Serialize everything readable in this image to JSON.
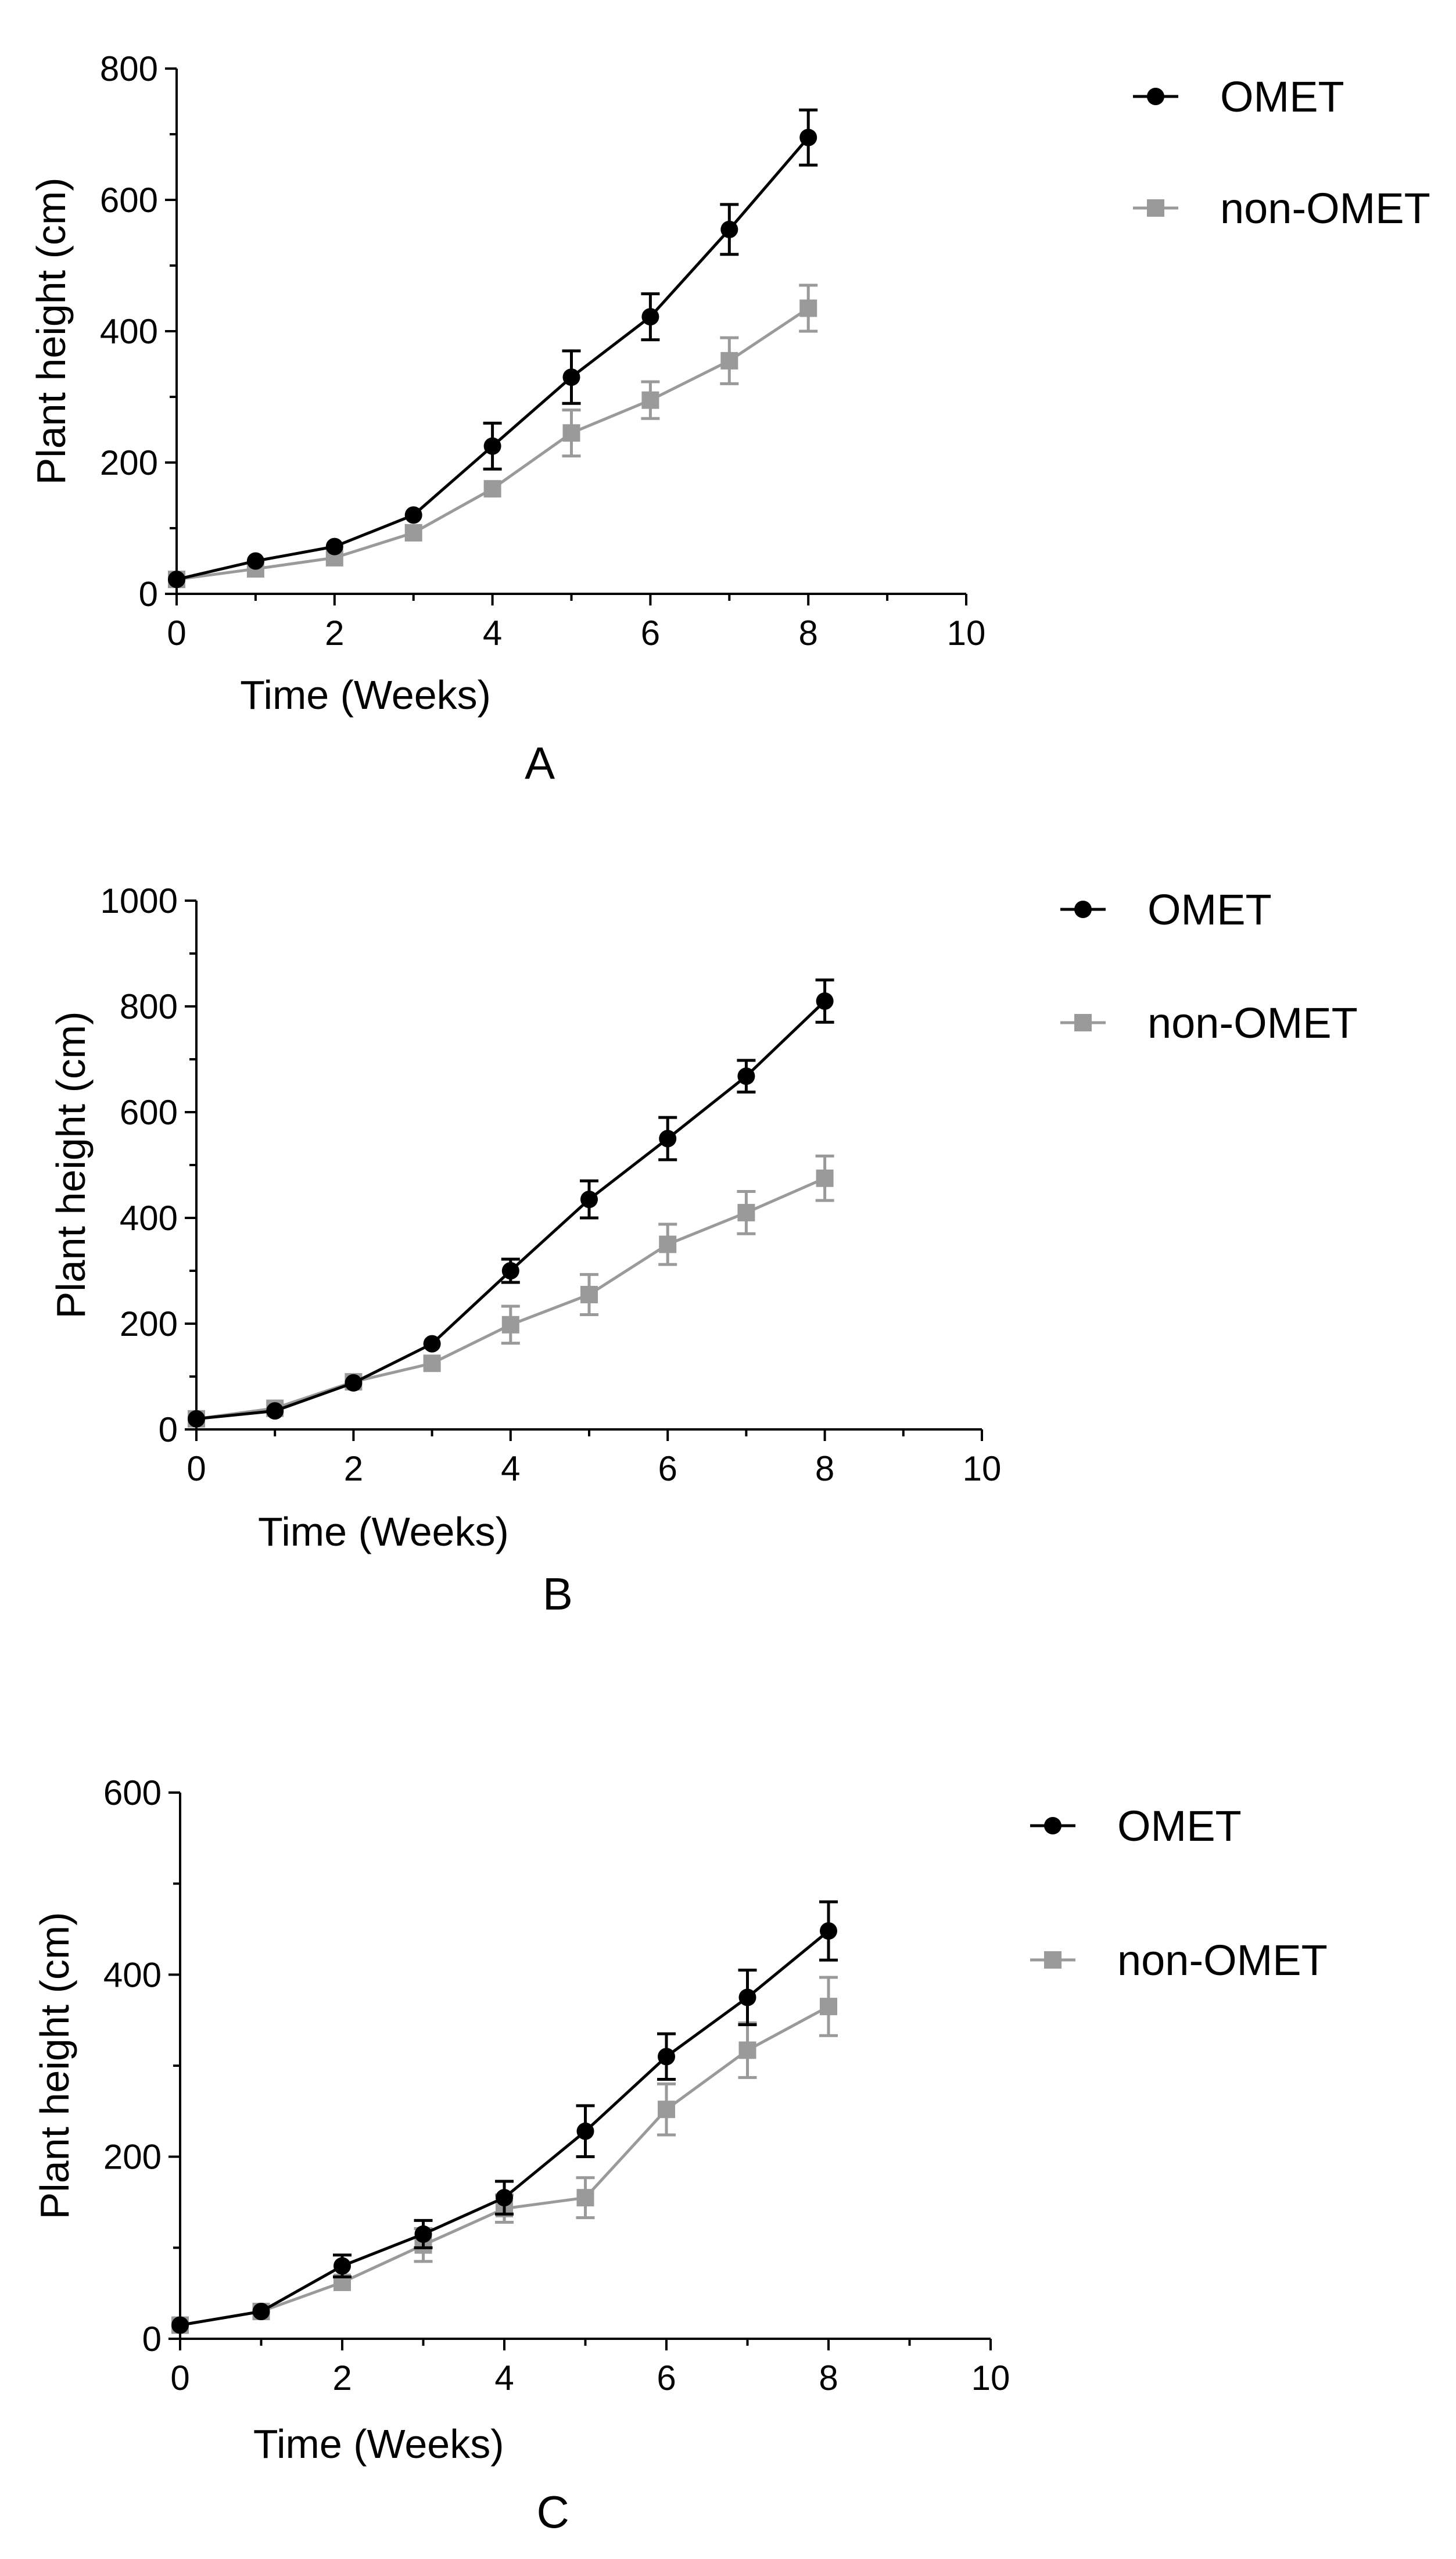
{
  "colors": {
    "omet": "#000000",
    "non_omet": "#9a9a9a"
  },
  "chart_data": [
    {
      "type": "line",
      "panel_label": "A",
      "xlabel": "Time (Weeks)",
      "ylabel": "Plant height (cm)",
      "xlim": [
        0,
        10
      ],
      "ylim": [
        0,
        800
      ],
      "x_ticks": [
        "0",
        "2",
        "4",
        "6",
        "8",
        "10"
      ],
      "y_ticks": [
        "0",
        "200",
        "400",
        "600",
        "800"
      ],
      "legend_position": "top-right",
      "x": [
        0,
        1,
        2,
        3,
        4,
        5,
        6,
        7,
        8
      ],
      "series": [
        {
          "name": "OMET",
          "marker": "circle",
          "values": [
            22,
            50,
            72,
            120,
            225,
            330,
            422,
            555,
            695
          ],
          "errors": [
            0,
            0,
            0,
            0,
            35,
            40,
            35,
            38,
            42
          ]
        },
        {
          "name": "non-OMET",
          "marker": "square",
          "values": [
            22,
            38,
            55,
            93,
            160,
            245,
            295,
            355,
            435
          ],
          "errors": [
            0,
            0,
            0,
            0,
            0,
            35,
            28,
            35,
            35
          ]
        }
      ]
    },
    {
      "type": "line",
      "panel_label": "B",
      "xlabel": "Time (Weeks)",
      "ylabel": "Plant height (cm)",
      "xlim": [
        0,
        10
      ],
      "ylim": [
        0,
        1000
      ],
      "x_ticks": [
        "0",
        "2",
        "4",
        "6",
        "8",
        "10"
      ],
      "y_ticks": [
        "0",
        "200",
        "400",
        "600",
        "800",
        "1000"
      ],
      "legend_position": "top-right",
      "x": [
        0,
        1,
        2,
        3,
        4,
        5,
        6,
        7,
        8
      ],
      "series": [
        {
          "name": "OMET",
          "marker": "circle",
          "values": [
            20,
            35,
            88,
            162,
            300,
            435,
            550,
            668,
            810
          ],
          "errors": [
            0,
            0,
            0,
            0,
            22,
            35,
            40,
            30,
            40
          ]
        },
        {
          "name": "non-OMET",
          "marker": "square",
          "values": [
            20,
            40,
            90,
            125,
            198,
            255,
            350,
            410,
            475
          ],
          "errors": [
            0,
            0,
            0,
            0,
            35,
            38,
            38,
            40,
            42
          ]
        }
      ]
    },
    {
      "type": "line",
      "panel_label": "C",
      "xlabel": "Time (Weeks)",
      "ylabel": "Plant height (cm)",
      "xlim": [
        0,
        10
      ],
      "ylim": [
        0,
        600
      ],
      "x_ticks": [
        "0",
        "2",
        "4",
        "6",
        "8",
        "10"
      ],
      "y_ticks": [
        "0",
        "200",
        "400",
        "600"
      ],
      "legend_position": "top-right",
      "x": [
        0,
        1,
        2,
        3,
        4,
        5,
        6,
        7,
        8
      ],
      "series": [
        {
          "name": "OMET",
          "marker": "circle",
          "values": [
            15,
            30,
            80,
            115,
            155,
            228,
            310,
            375,
            448
          ],
          "errors": [
            0,
            0,
            12,
            15,
            18,
            28,
            25,
            30,
            32
          ]
        },
        {
          "name": "non-OMET",
          "marker": "square",
          "values": [
            15,
            30,
            62,
            103,
            143,
            155,
            252,
            317,
            365
          ],
          "errors": [
            0,
            0,
            0,
            18,
            15,
            22,
            28,
            30,
            32
          ]
        }
      ]
    }
  ]
}
